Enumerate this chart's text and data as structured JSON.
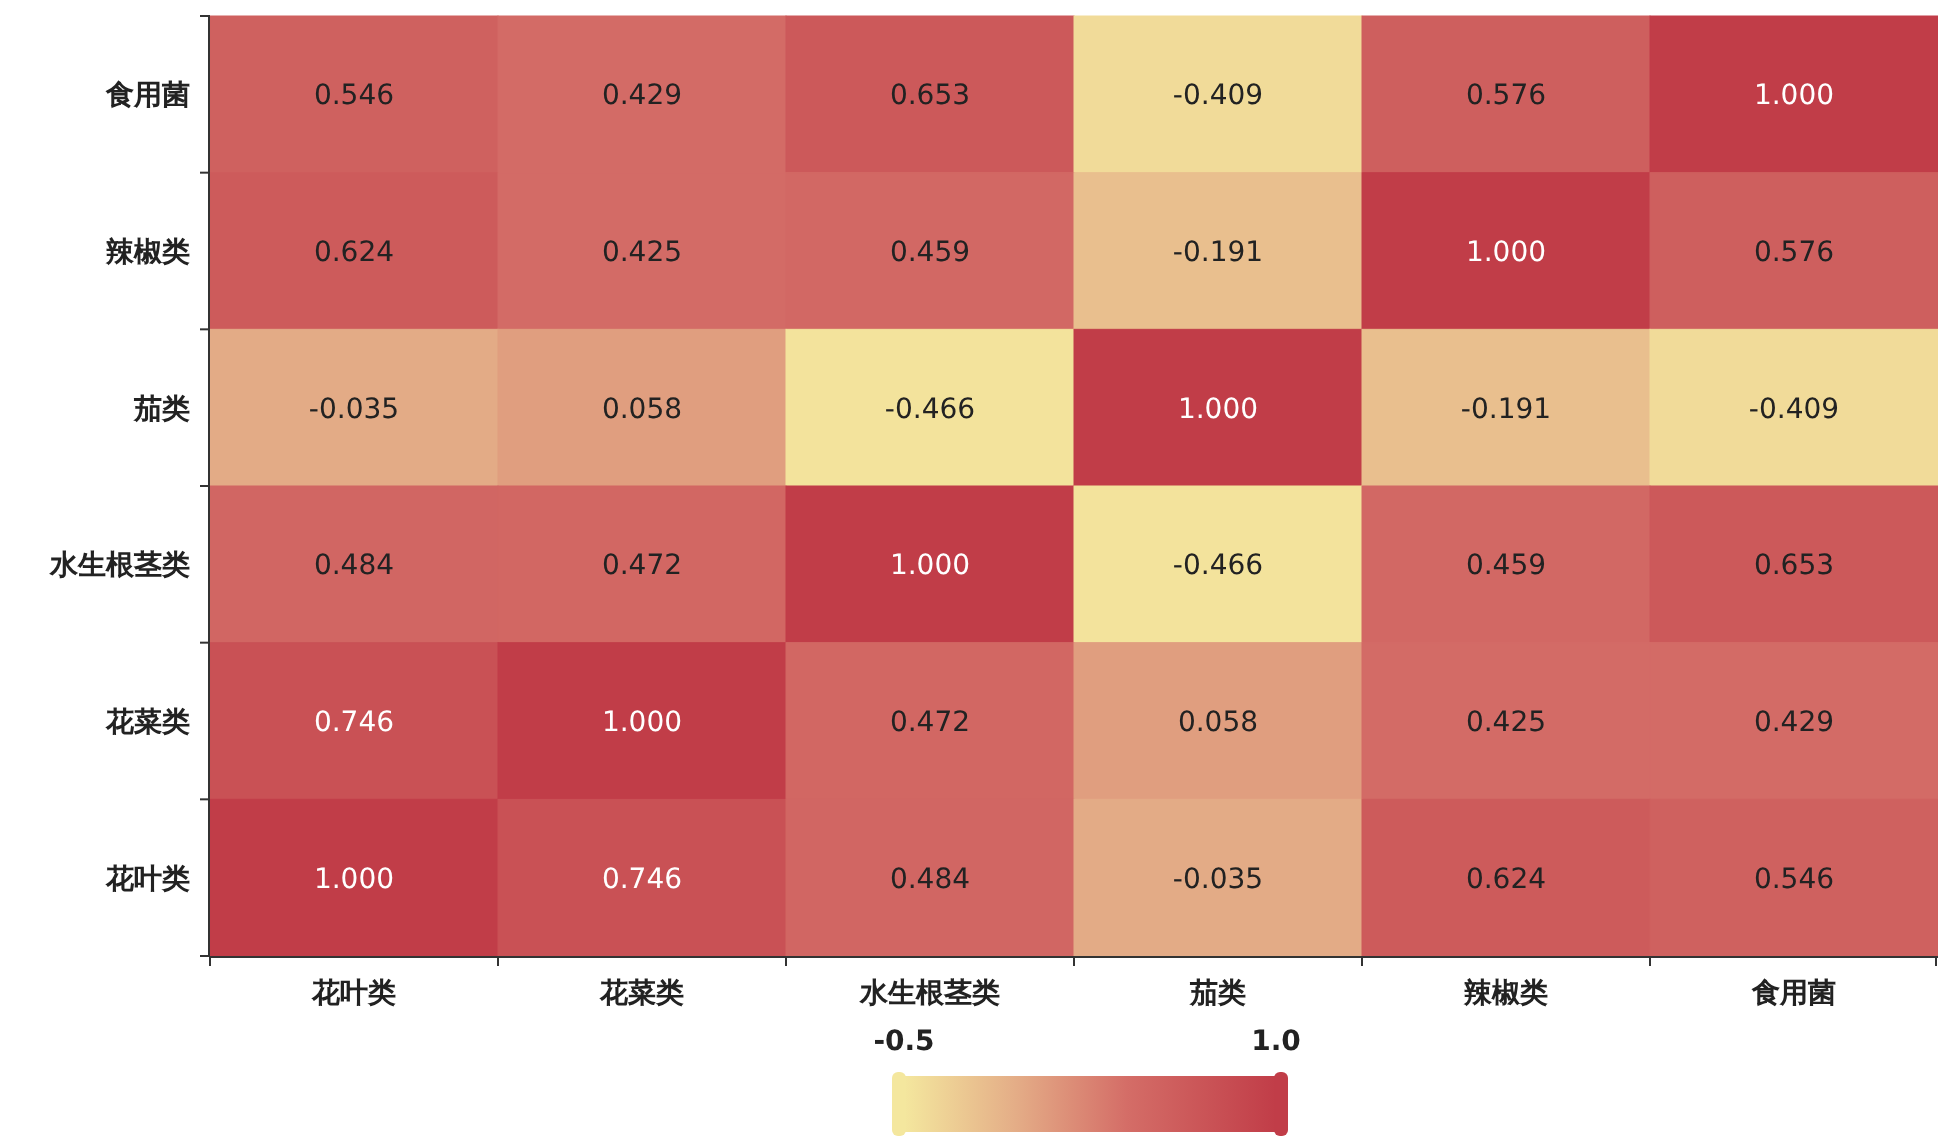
{
  "chart_data": {
    "type": "heatmap",
    "categories": [
      "花叶类",
      "花菜类",
      "水生根茎类",
      "茄类",
      "辣椒类",
      "食用菌"
    ],
    "y_categories": [
      "食用菌",
      "辣椒类",
      "茄类",
      "水生根茎类",
      "花菜类",
      "花叶类"
    ],
    "cells": [
      [
        0.546,
        0.429,
        0.653,
        -0.409,
        0.576,
        1.0
      ],
      [
        0.624,
        0.425,
        0.459,
        -0.191,
        1.0,
        0.576
      ],
      [
        -0.035,
        0.058,
        -0.466,
        1.0,
        -0.191,
        -0.409
      ],
      [
        0.484,
        0.472,
        1.0,
        -0.466,
        0.459,
        0.653
      ],
      [
        0.746,
        1.0,
        0.472,
        0.058,
        0.425,
        0.429
      ],
      [
        1.0,
        0.746,
        0.484,
        -0.035,
        0.624,
        0.546
      ]
    ],
    "cell_labels": [
      [
        "0.546",
        "0.429",
        "0.653",
        "-0.409",
        "0.576",
        "1.000"
      ],
      [
        "0.624",
        "0.425",
        "0.459",
        "-0.191",
        "1.000",
        "0.576"
      ],
      [
        "-0.035",
        "0.058",
        "-0.466",
        "1.000",
        "-0.191",
        "-0.409"
      ],
      [
        "0.484",
        "0.472",
        "1.000",
        "-0.466",
        "0.459",
        "0.653"
      ],
      [
        "0.746",
        "1.000",
        "0.472",
        "0.058",
        "0.425",
        "0.429"
      ],
      [
        "1.000",
        "0.746",
        "0.484",
        "-0.035",
        "0.624",
        "0.546"
      ]
    ],
    "clim": [
      -0.5,
      1.0
    ],
    "cticks": [
      {
        "value": -0.5,
        "label": "-0.5"
      },
      {
        "value": 1.0,
        "label": "1.0"
      }
    ]
  }
}
